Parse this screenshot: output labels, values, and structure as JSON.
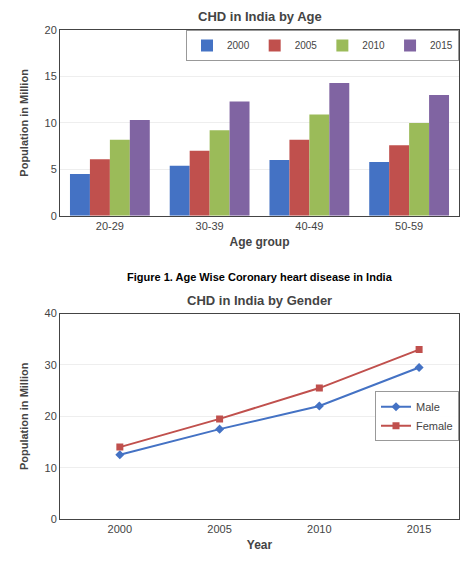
{
  "caption": "Figure 1. Age Wise Coronary heart disease in India",
  "chart_data": [
    {
      "type": "bar",
      "title": "CHD in India by Age",
      "xlabel": "Age group",
      "ylabel": "Population in Million",
      "categories": [
        "20-29",
        "30-39",
        "40-49",
        "50-59"
      ],
      "series": [
        {
          "name": "2000",
          "color": "#4472c4",
          "values": [
            4.5,
            5.4,
            6.0,
            5.8
          ]
        },
        {
          "name": "2005",
          "color": "#c0504d",
          "values": [
            6.1,
            7.0,
            8.2,
            7.6
          ]
        },
        {
          "name": "2010",
          "color": "#9bbb59",
          "values": [
            8.2,
            9.2,
            10.9,
            10.0
          ]
        },
        {
          "name": "2015",
          "color": "#8064a2",
          "values": [
            10.3,
            12.3,
            14.3,
            13.0
          ]
        }
      ],
      "ylim": [
        0,
        20
      ],
      "yticks": [
        0,
        5,
        10,
        15,
        20
      ],
      "grid": true,
      "legend": "upper right"
    },
    {
      "type": "line",
      "title": "CHD in India by Gender",
      "xlabel": "Year",
      "ylabel": "Population in Million",
      "x": [
        2000,
        2005,
        2010,
        2015
      ],
      "series": [
        {
          "name": "Male",
          "color": "#4472c4",
          "marker": "diamond",
          "values": [
            12.5,
            17.5,
            22.0,
            29.5
          ]
        },
        {
          "name": "Female",
          "color": "#c0504d",
          "marker": "square",
          "values": [
            14.0,
            19.5,
            25.5,
            33.0
          ]
        }
      ],
      "xlim": [
        1997,
        2017
      ],
      "xticks": [
        2000,
        2005,
        2010,
        2015
      ],
      "ylim": [
        0,
        40
      ],
      "yticks": [
        0,
        10,
        20,
        30,
        40
      ],
      "grid": true,
      "legend": "right"
    }
  ]
}
